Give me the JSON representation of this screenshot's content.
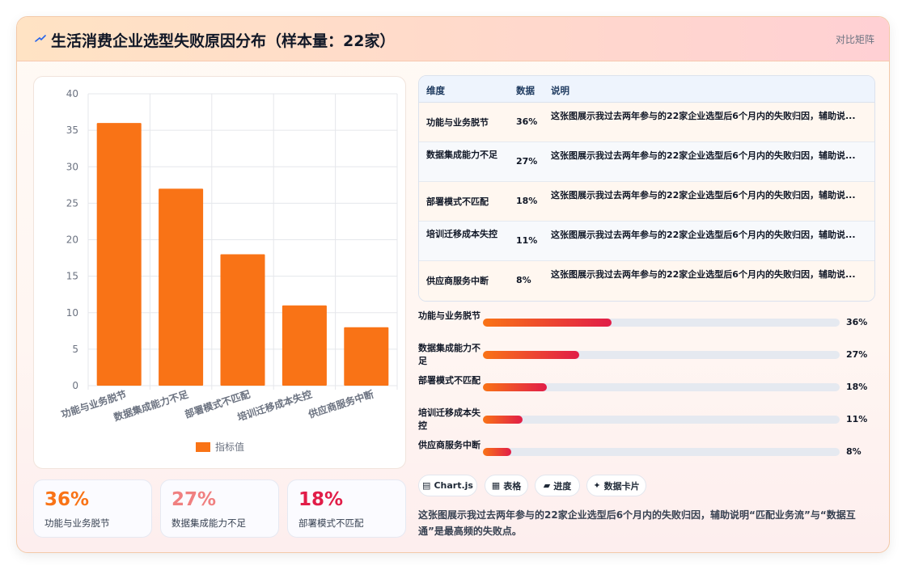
{
  "header": {
    "title": "生活消费企业选型失败原因分布（样本量：22家）",
    "link": "对比矩阵",
    "icon": "sparkle-icon"
  },
  "chart_data": {
    "type": "bar",
    "categories": [
      "功能与业务脱节",
      "数据集成能力不足",
      "部署模式不匹配",
      "培训迁移成本失控",
      "供应商服务中断"
    ],
    "series": [
      {
        "name": "指标值",
        "values": [
          36,
          27,
          18,
          11,
          8
        ]
      }
    ],
    "ylim": [
      0,
      40
    ],
    "yticks": [
      0,
      5,
      10,
      15,
      20,
      25,
      30,
      35,
      40
    ],
    "legend": "bottom",
    "grid": true,
    "colors": {
      "bar": "#f97316",
      "grid": "#e5e7eb",
      "axis_text": "#6b7280"
    }
  },
  "kpis": [
    {
      "value": "36%",
      "label": "功能与业务脱节",
      "color": "#f97316"
    },
    {
      "value": "27%",
      "label": "数据集成能力不足",
      "color": "#f08080"
    },
    {
      "value": "18%",
      "label": "部署模式不匹配",
      "color": "#e11d48"
    }
  ],
  "table": {
    "headers": [
      "维度",
      "数据",
      "说明"
    ],
    "rows": [
      {
        "dim": "功能与业务脱节",
        "val": "36%",
        "desc": "这张图展示我过去两年参与的22家企业选型后6个月内的失败归因，辅助说..."
      },
      {
        "dim": "数据集成能力不足",
        "val": "27%",
        "desc": "这张图展示我过去两年参与的22家企业选型后6个月内的失败归因，辅助说..."
      },
      {
        "dim": "部署模式不匹配",
        "val": "18%",
        "desc": "这张图展示我过去两年参与的22家企业选型后6个月内的失败归因，辅助说..."
      },
      {
        "dim": "培训迁移成本失控",
        "val": "11%",
        "desc": "这张图展示我过去两年参与的22家企业选型后6个月内的失败归因，辅助说..."
      },
      {
        "dim": "供应商服务中断",
        "val": "8%",
        "desc": "这张图展示我过去两年参与的22家企业选型后6个月内的失败归因，辅助说..."
      }
    ]
  },
  "progress": [
    {
      "label": "功能与业务脱节",
      "value": 0.36,
      "text": "36%"
    },
    {
      "label": "数据集成能力不足",
      "value": 0.27,
      "text": "27%"
    },
    {
      "label": "部署模式不匹配",
      "value": 0.18,
      "text": "18%"
    },
    {
      "label": "培训迁移成本失控",
      "value": 0.11,
      "text": "11%"
    },
    {
      "label": "供应商服务中断",
      "value": 0.08,
      "text": "8%"
    }
  ],
  "chips": [
    {
      "icon": "▤",
      "label": "Chart.js"
    },
    {
      "icon": "▦",
      "label": "表格"
    },
    {
      "icon": "▰",
      "label": "进度"
    },
    {
      "icon": "✦",
      "label": "数据卡片"
    }
  ],
  "note": "这张图展示我过去两年参与的22家企业选型后6个月内的失败归因，辅助说明“匹配业务流”与“数据互通”是最高频的失败点。"
}
